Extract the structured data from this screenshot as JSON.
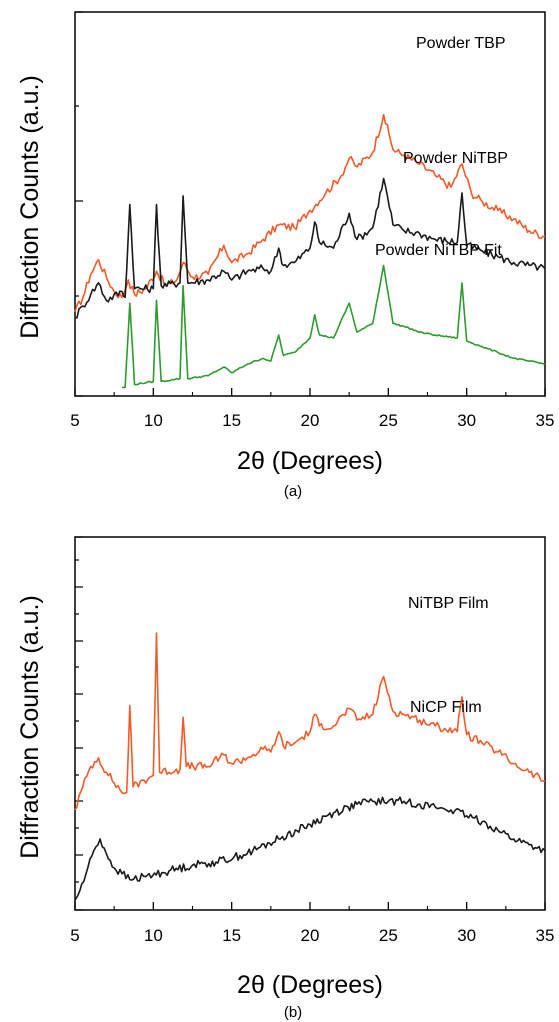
{
  "chart_data": [
    {
      "type": "line",
      "panel_label": "(a)",
      "xlabel": "2θ (Degrees)",
      "ylabel": "Diffraction Counts (a.u.)",
      "xlim": [
        5,
        35
      ],
      "xticks": [
        5,
        10,
        15,
        20,
        25,
        30,
        35
      ],
      "y_tick_labels_shown": false,
      "grid": false,
      "series": [
        {
          "name": "Powder TBP",
          "color": "#f15a29",
          "x": [
            5.0,
            5.5,
            6.0,
            6.5,
            7.0,
            7.5,
            8.0,
            8.4,
            8.8,
            9.5,
            10.2,
            10.8,
            11.5,
            11.9,
            12.5,
            13.5,
            14.5,
            15.0,
            16.0,
            17.0,
            18.0,
            19.0,
            20.0,
            21.0,
            22.0,
            22.5,
            23.0,
            24.0,
            24.7,
            25.3,
            26.0,
            27.0,
            28.0,
            29.0,
            29.7,
            30.3,
            31.0,
            32.0,
            33.0,
            34.0,
            35.0
          ],
          "y": [
            0.3,
            0.8,
            1.6,
            2.1,
            1.5,
            1.0,
            0.8,
            1.4,
            0.9,
            1.1,
            1.7,
            1.2,
            1.4,
            2.0,
            1.5,
            1.6,
            2.6,
            2.0,
            2.3,
            2.8,
            3.3,
            3.2,
            3.8,
            4.4,
            5.0,
            5.6,
            5.3,
            5.8,
            7.1,
            5.9,
            5.7,
            5.4,
            5.0,
            4.6,
            5.4,
            4.4,
            4.1,
            3.8,
            3.5,
            3.1,
            2.9
          ]
        },
        {
          "name": "Powder NiTBP",
          "color": "#1a1a1a",
          "x": [
            5.0,
            5.5,
            6.0,
            6.5,
            7.0,
            8.0,
            8.2,
            8.5,
            8.8,
            10.0,
            10.2,
            10.5,
            11.7,
            11.9,
            12.2,
            13.5,
            14.5,
            15.0,
            16.0,
            17.0,
            17.5,
            18.0,
            18.3,
            19.0,
            20.0,
            20.3,
            20.6,
            21.5,
            22.5,
            23.0,
            24.0,
            24.7,
            25.3,
            26.0,
            27.0,
            28.0,
            29.4,
            29.7,
            30.0,
            31.0,
            32.0,
            33.0,
            34.0,
            35.0
          ],
          "y": [
            0.3,
            0.7,
            1.1,
            1.5,
            0.9,
            1.2,
            1.0,
            4.2,
            1.3,
            1.3,
            4.2,
            1.4,
            1.5,
            4.5,
            1.5,
            1.6,
            1.9,
            1.6,
            1.9,
            2.0,
            1.9,
            2.7,
            2.1,
            2.2,
            2.7,
            3.6,
            2.9,
            2.7,
            3.9,
            3.0,
            3.4,
            5.1,
            3.5,
            3.3,
            3.2,
            3.0,
            2.9,
            4.6,
            2.8,
            2.6,
            2.4,
            2.2,
            2.1,
            2.0
          ]
        },
        {
          "name": "Powder NiTBP Fit",
          "color": "#2e9b2e",
          "x": [
            8.0,
            8.2,
            8.5,
            8.8,
            10.0,
            10.2,
            10.5,
            11.7,
            11.9,
            12.2,
            13.5,
            14.5,
            15.0,
            16.0,
            17.0,
            17.5,
            18.0,
            18.3,
            19.0,
            20.0,
            20.3,
            20.6,
            21.5,
            22.5,
            23.0,
            24.0,
            24.7,
            25.3,
            26.0,
            27.0,
            28.0,
            29.4,
            29.7,
            30.0,
            31.0,
            32.0,
            33.0,
            34.0,
            35.0
          ],
          "y": [
            0.1,
            0.1,
            3.0,
            0.2,
            0.3,
            3.1,
            0.3,
            0.4,
            3.6,
            0.4,
            0.5,
            0.8,
            0.6,
            0.9,
            1.1,
            1.0,
            1.9,
            1.2,
            1.3,
            1.8,
            2.6,
            1.9,
            1.8,
            3.0,
            2.0,
            2.3,
            4.3,
            2.3,
            2.2,
            2.0,
            1.9,
            1.8,
            3.7,
            1.7,
            1.5,
            1.3,
            1.1,
            1.0,
            0.9
          ]
        }
      ]
    },
    {
      "type": "line",
      "panel_label": "(b)",
      "xlabel": "2θ (Degrees)",
      "ylabel": "Diffraction Counts (a.u.)",
      "xlim": [
        5,
        35
      ],
      "xticks": [
        5,
        10,
        15,
        20,
        25,
        30,
        35
      ],
      "y_tick_labels_shown": false,
      "grid": false,
      "series": [
        {
          "name": "NiTBP Film",
          "color": "#f15a29",
          "x": [
            5.0,
            5.5,
            6.0,
            6.5,
            7.0,
            8.0,
            8.3,
            8.5,
            8.7,
            10.0,
            10.2,
            10.4,
            11.7,
            11.9,
            12.1,
            13.5,
            14.5,
            15.0,
            16.0,
            17.0,
            17.5,
            18.0,
            18.3,
            19.0,
            20.0,
            20.3,
            20.6,
            21.5,
            22.5,
            23.0,
            24.0,
            24.7,
            25.3,
            26.0,
            27.0,
            28.0,
            29.4,
            29.7,
            30.0,
            31.0,
            32.0,
            33.0,
            34.0,
            35.0
          ],
          "y": [
            0.0,
            0.8,
            1.5,
            1.8,
            1.3,
            0.6,
            0.6,
            3.6,
            0.8,
            1.2,
            6.1,
            1.3,
            1.4,
            3.2,
            1.5,
            1.5,
            1.9,
            1.6,
            1.8,
            2.1,
            2.0,
            2.7,
            2.2,
            2.3,
            2.7,
            3.3,
            2.9,
            2.9,
            3.5,
            3.1,
            3.3,
            4.6,
            3.4,
            3.3,
            3.1,
            2.9,
            2.7,
            3.9,
            2.6,
            2.3,
            2.0,
            1.6,
            1.3,
            1.0
          ]
        },
        {
          "name": "NiCP Film",
          "color": "#1a1a1a",
          "x": [
            5.0,
            5.3,
            5.7,
            6.2,
            6.6,
            7.0,
            7.5,
            8.0,
            8.5,
            9.5,
            11.0,
            12.5,
            14.0,
            16.0,
            18.0,
            20.0,
            21.5,
            23.0,
            24.0,
            25.0,
            26.0,
            27.0,
            28.0,
            29.0,
            30.0,
            31.0,
            32.0,
            33.0,
            34.0,
            35.0
          ],
          "y": [
            0.0,
            0.3,
            0.9,
            1.7,
            2.1,
            1.6,
            1.1,
            0.9,
            0.7,
            0.8,
            1.0,
            1.2,
            1.3,
            1.6,
            2.1,
            2.6,
            3.0,
            3.3,
            3.4,
            3.4,
            3.4,
            3.3,
            3.2,
            3.1,
            2.9,
            2.7,
            2.4,
            2.1,
            1.9,
            1.7
          ]
        }
      ]
    }
  ]
}
